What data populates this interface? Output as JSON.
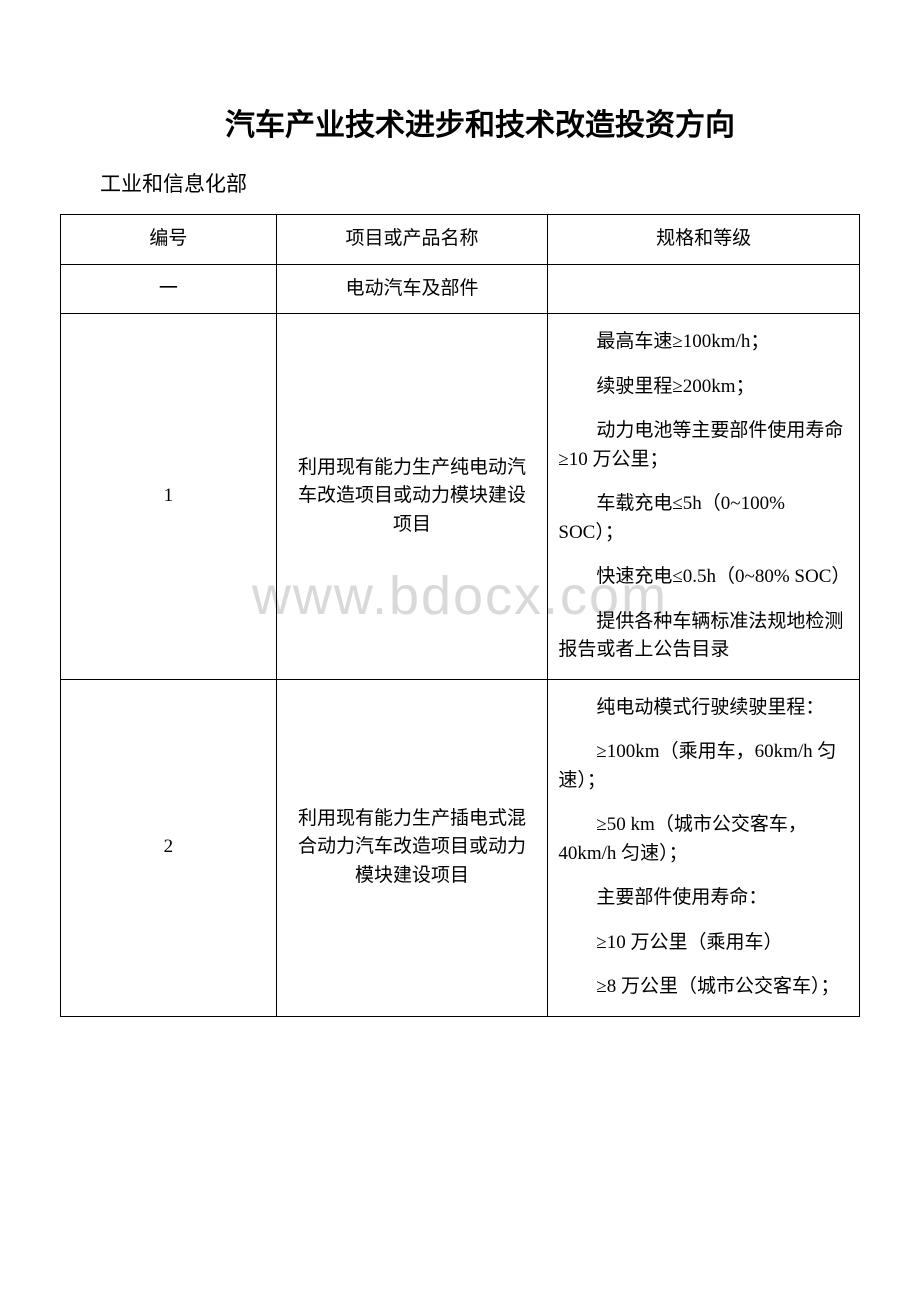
{
  "title": "汽车产业技术进步和技术改造投资方向",
  "subtitle": "工业和信息化部",
  "watermark": "www.bdocx.com",
  "headers": {
    "col1": "编号",
    "col2": "项目或产品名称",
    "col3": "规格和等级"
  },
  "section": {
    "num": "一",
    "label": "电动汽车及部件"
  },
  "rows": [
    {
      "num": "1",
      "name": "利用现有能力生产纯电动汽车改造项目或动力模块建设项目",
      "specs": [
        "最高车速≥100km/h；",
        "续驶里程≥200km；",
        "动力电池等主要部件使用寿命≥10 万公里；",
        "车载充电≤5h（0~100% SOC）；",
        "快速充电≤0.5h（0~80% SOC）",
        "提供各种车辆标准法规地检测报告或者上公告目录"
      ]
    },
    {
      "num": "2",
      "name": "利用现有能力生产插电式混合动力汽车改造项目或动力模块建设项目",
      "specs": [
        "纯电动模式行驶续驶里程：",
        "≥100km（乘用车，60km/h 匀速）；",
        "≥50 km（城市公交客车，40km/h 匀速）；",
        "主要部件使用寿命：",
        "≥10 万公里（乘用车）",
        "≥8 万公里（城市公交客车）；"
      ]
    }
  ]
}
